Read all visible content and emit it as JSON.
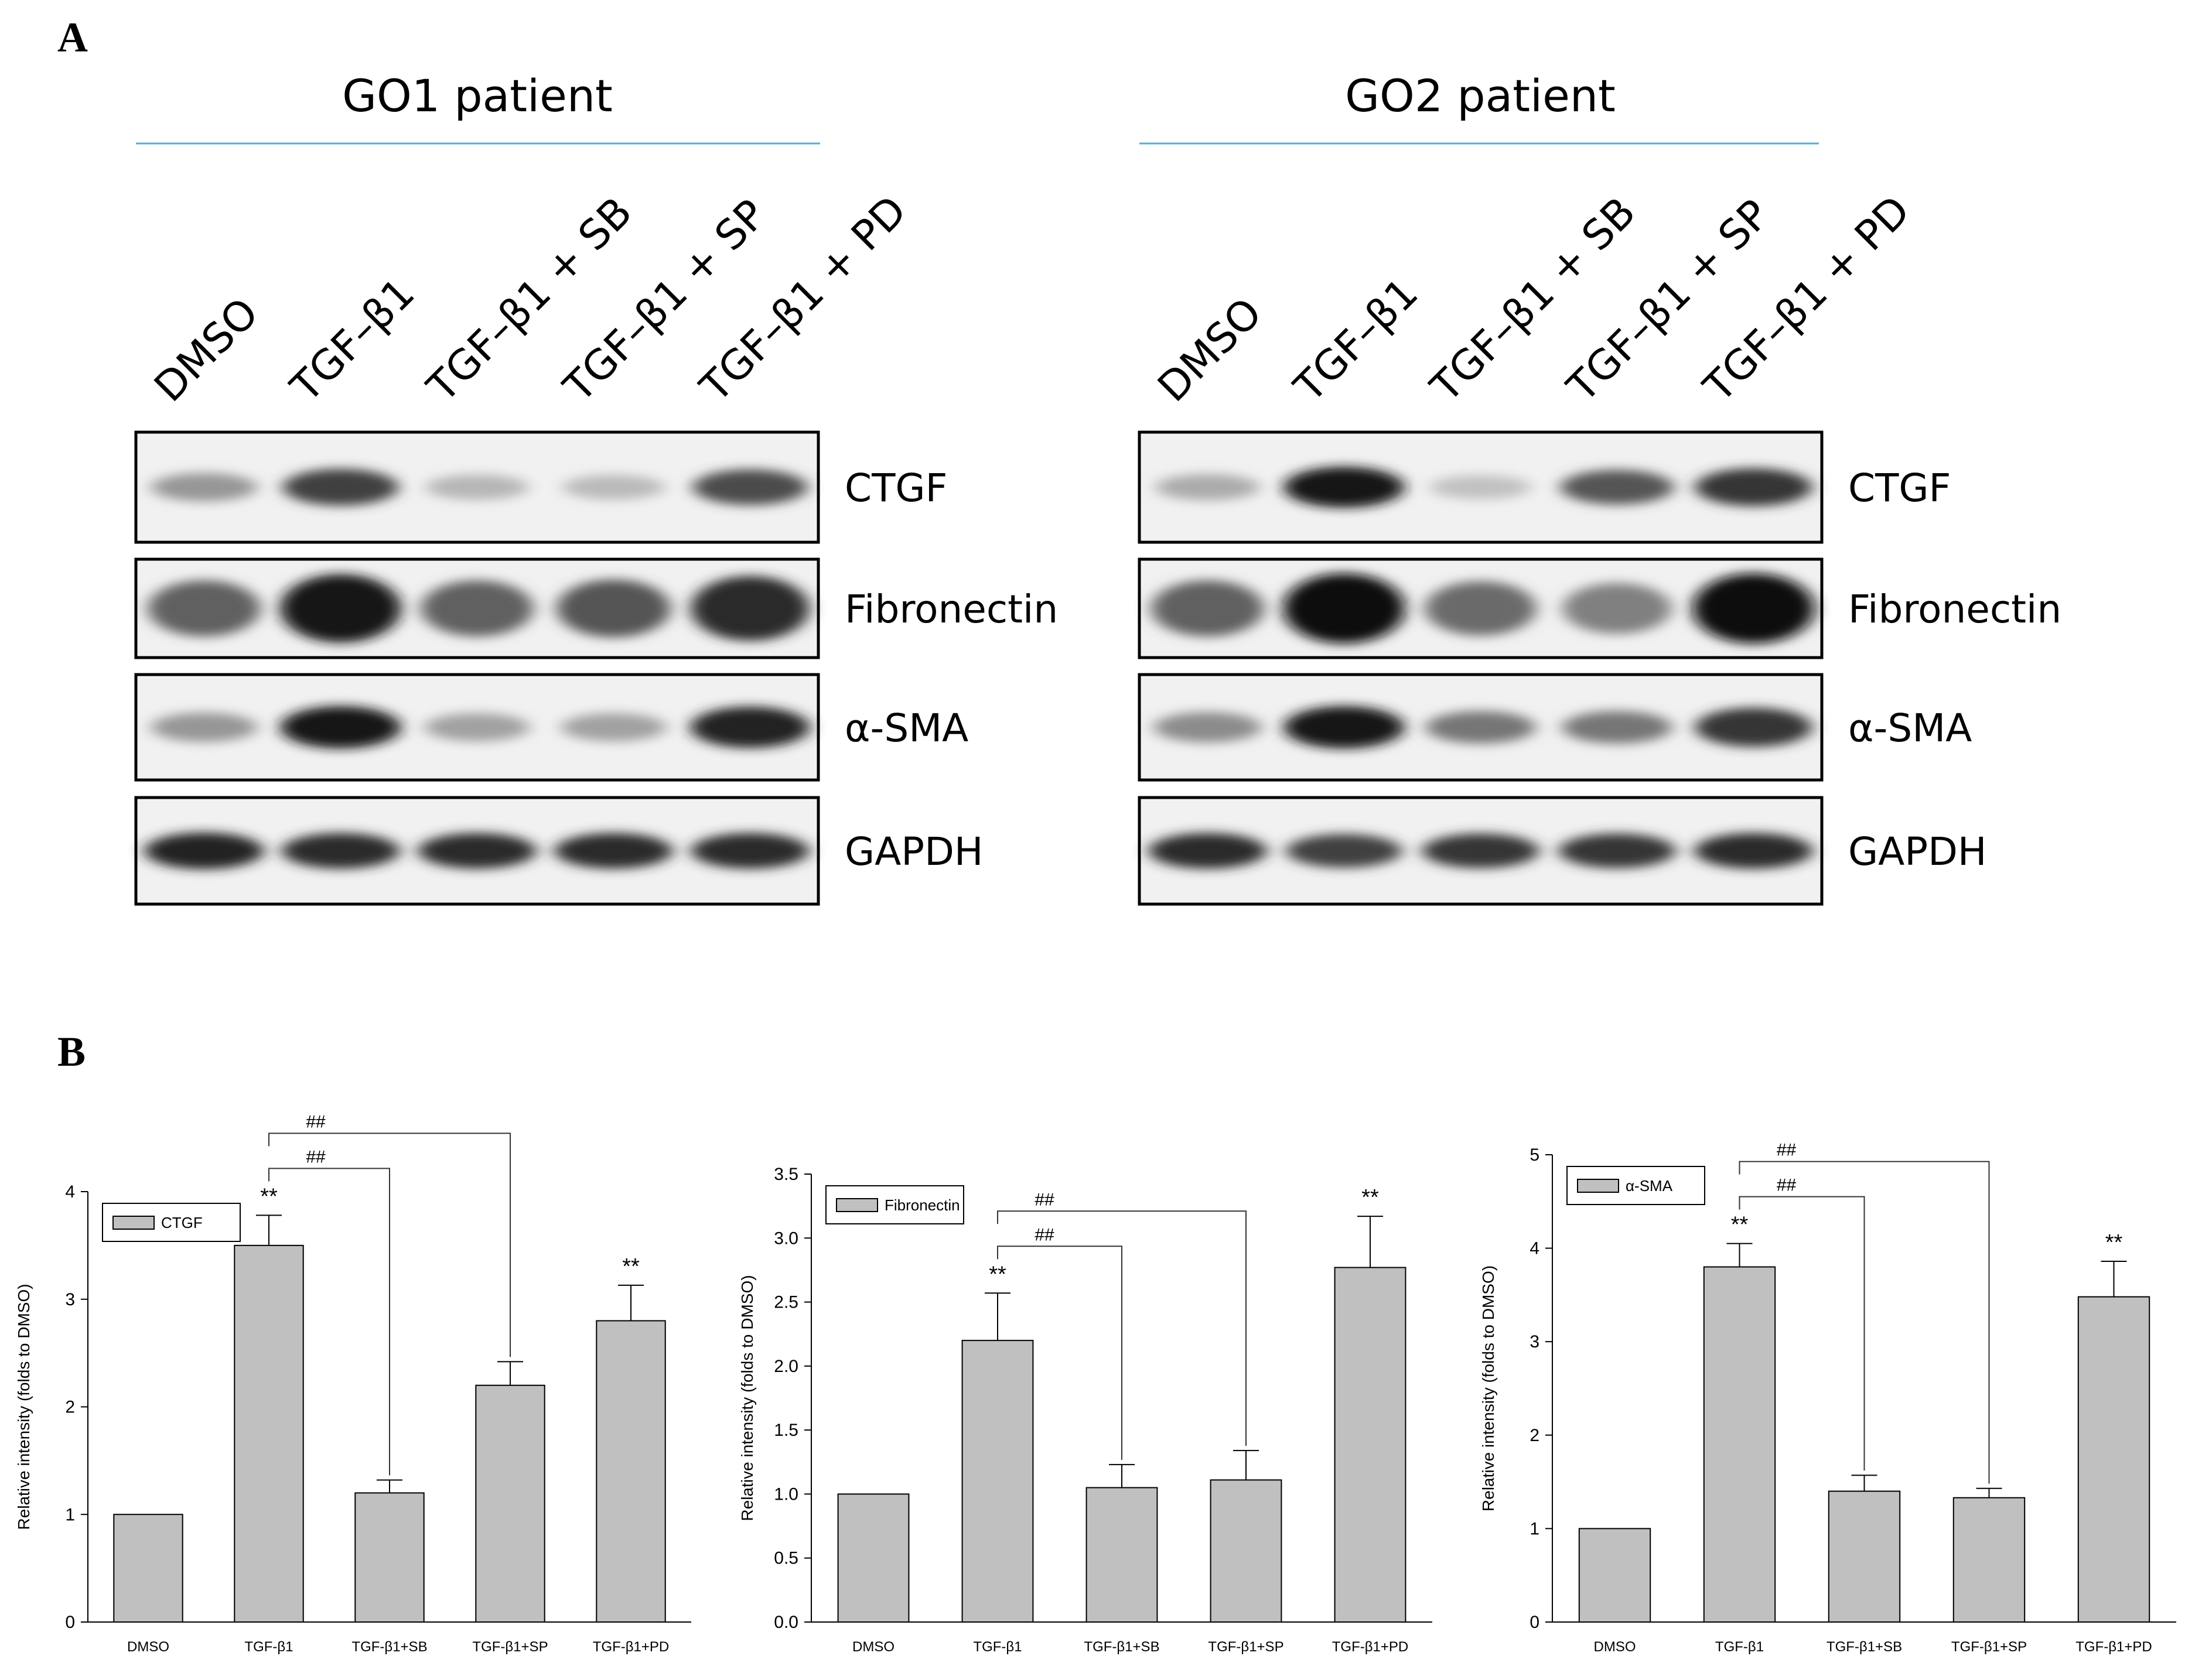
{
  "panel_a": {
    "letter": "A",
    "blots": [
      {
        "patient": "GO1 patient",
        "lanes": [
          "DMSO",
          "TGF–β1",
          "TGF–β1 + SB",
          "TGF–β1 + SP",
          "TGF–β1 + PD"
        ],
        "rows": [
          {
            "protein": "CTGF",
            "intensity": [
              0.35,
              0.75,
              0.2,
              0.18,
              0.7
            ]
          },
          {
            "protein": "Fibronectin",
            "intensity": [
              0.6,
              0.95,
              0.6,
              0.65,
              0.85
            ]
          },
          {
            "protein": "α-SMA",
            "intensity": [
              0.35,
              0.95,
              0.3,
              0.3,
              0.9
            ]
          },
          {
            "protein": "GAPDH",
            "intensity": [
              0.9,
              0.85,
              0.85,
              0.85,
              0.85
            ]
          }
        ]
      },
      {
        "patient": "GO2 patient",
        "lanes": [
          "DMSO",
          "TGF–β1",
          "TGF–β1 + SB",
          "TGF–β1 + SP",
          "TGF–β1 + PD"
        ],
        "rows": [
          {
            "protein": "CTGF",
            "intensity": [
              0.25,
              0.95,
              0.15,
              0.65,
              0.8
            ]
          },
          {
            "protein": "Fibronectin",
            "intensity": [
              0.6,
              1.0,
              0.55,
              0.45,
              1.0
            ]
          },
          {
            "protein": "α-SMA",
            "intensity": [
              0.4,
              0.95,
              0.5,
              0.5,
              0.8
            ]
          },
          {
            "protein": "GAPDH",
            "intensity": [
              0.85,
              0.75,
              0.8,
              0.8,
              0.85
            ]
          }
        ]
      }
    ]
  },
  "panel_b": {
    "letter": "B"
  },
  "chart_data": [
    {
      "type": "bar",
      "legend": "CTGF",
      "legend_position": "top-left",
      "ylabel": "Relative intensity (folds to DMSO)",
      "categories": [
        "DMSO",
        "TGF-β1",
        "TGF-β1+SB",
        "TGF-β1+SP",
        "TGF-β1+PD"
      ],
      "values": [
        1.0,
        3.5,
        1.2,
        2.2,
        2.8
      ],
      "errors": [
        0,
        0.28,
        0.12,
        0.22,
        0.33
      ],
      "annotations": [
        "",
        "**",
        "",
        "",
        "**"
      ],
      "comparisons": [
        {
          "from": 1,
          "to": 2,
          "label": "##"
        },
        {
          "from": 1,
          "to": 3,
          "label": "##"
        }
      ],
      "ylim": [
        0,
        4
      ],
      "yticks": [
        "0",
        "1",
        "2",
        "3",
        "4"
      ],
      "grid": false,
      "bar_color": "#c0c0c0"
    },
    {
      "type": "bar",
      "legend": "Fibronectin",
      "legend_position": "top-left",
      "ylabel": "Relative intensity (folds to DMSO)",
      "categories": [
        "DMSO",
        "TGF-β1",
        "TGF-β1+SB",
        "TGF-β1+SP",
        "TGF-β1+PD"
      ],
      "values": [
        1.0,
        2.2,
        1.05,
        1.11,
        2.77
      ],
      "errors": [
        0,
        0.37,
        0.18,
        0.23,
        0.4
      ],
      "annotations": [
        "",
        "**",
        "",
        "",
        "**"
      ],
      "comparisons": [
        {
          "from": 1,
          "to": 2,
          "label": "##"
        },
        {
          "from": 1,
          "to": 3,
          "label": "##"
        }
      ],
      "ylim": [
        0,
        3.5
      ],
      "yticks": [
        "0.0",
        "0.5",
        "1.0",
        "1.5",
        "2.0",
        "2.5",
        "3.0",
        "3.5"
      ],
      "grid": false,
      "bar_color": "#c0c0c0"
    },
    {
      "type": "bar",
      "legend": "α-SMA",
      "legend_position": "top-left",
      "ylabel": "Relative intensity (folds to DMSO)",
      "categories": [
        "DMSO",
        "TGF-β1",
        "TGF-β1+SB",
        "TGF-β1+SP",
        "TGF-β1+PD"
      ],
      "values": [
        1.0,
        3.8,
        1.4,
        1.33,
        3.48
      ],
      "errors": [
        0,
        0.25,
        0.17,
        0.1,
        0.38
      ],
      "annotations": [
        "",
        "**",
        "",
        "",
        "**"
      ],
      "comparisons": [
        {
          "from": 1,
          "to": 2,
          "label": "##"
        },
        {
          "from": 1,
          "to": 3,
          "label": "##"
        }
      ],
      "ylim": [
        0,
        5
      ],
      "yticks": [
        "0",
        "1",
        "2",
        "3",
        "4",
        "5"
      ],
      "grid": false,
      "bar_color": "#c0c0c0"
    }
  ]
}
